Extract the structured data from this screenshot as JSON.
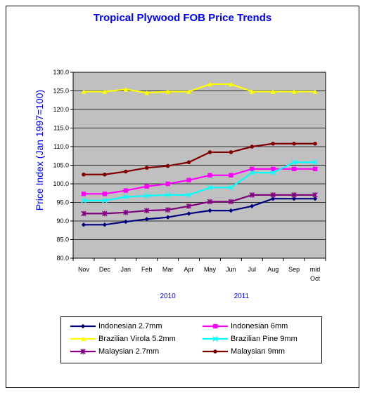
{
  "chart_data": {
    "type": "line",
    "title": "Tropical Plywood FOB Price Trends",
    "ylabel": "Price Index (Jan 1997=100)",
    "xlabel": "",
    "ylim": [
      80.0,
      130.0
    ],
    "y_ticks": [
      "80.0",
      "85.0",
      "90.0",
      "95.0",
      "100.0",
      "105.0",
      "110.0",
      "115.0",
      "120.0",
      "125.0",
      "130.0"
    ],
    "categories": [
      "Nov",
      "Dec",
      "Jan",
      "Feb",
      "Mar",
      "Apr",
      "May",
      "Jun",
      "Jul",
      "Aug",
      "Sep",
      "mid Oct"
    ],
    "category_lines": [
      [
        "Nov"
      ],
      [
        "Dec"
      ],
      [
        "Jan"
      ],
      [
        "Feb"
      ],
      [
        "Mar"
      ],
      [
        "Apr"
      ],
      [
        "May"
      ],
      [
        "Jun"
      ],
      [
        "Jul"
      ],
      [
        "Aug"
      ],
      [
        "Sep"
      ],
      [
        "mid",
        "Oct"
      ]
    ],
    "year_labels": [
      {
        "text": "2010",
        "at": 4
      },
      {
        "text": "2011",
        "at": 7.5
      }
    ],
    "grid": "horizontal",
    "legend_position": "bottom",
    "series": [
      {
        "name": "Indonesian 2.7mm",
        "color": "#000080",
        "marker": "diamond",
        "values": [
          89.0,
          89.0,
          89.8,
          90.5,
          91.0,
          92.0,
          92.8,
          92.8,
          94.0,
          96.0,
          96.0,
          96.0
        ]
      },
      {
        "name": "Indonesian 6mm",
        "color": "#ff00ff",
        "marker": "square",
        "values": [
          97.3,
          97.3,
          98.2,
          99.3,
          100.0,
          101.0,
          102.3,
          102.3,
          104.0,
          104.0,
          104.0,
          104.0
        ]
      },
      {
        "name": "Brazilian Virola 5.2mm",
        "color": "#ffff00",
        "marker": "triangle",
        "values": [
          124.8,
          124.8,
          125.4,
          124.5,
          124.8,
          124.8,
          126.8,
          126.8,
          124.8,
          124.8,
          124.8,
          124.8
        ]
      },
      {
        "name": "Brazilian Pine 9mm",
        "color": "#00ffff",
        "marker": "x",
        "values": [
          95.5,
          95.5,
          96.5,
          96.8,
          97.0,
          97.0,
          99.0,
          99.0,
          103.0,
          103.0,
          105.8,
          105.8
        ]
      },
      {
        "name": "Malaysian 2.7mm",
        "color": "#800080",
        "marker": "star",
        "values": [
          92.0,
          92.0,
          92.3,
          92.8,
          93.0,
          94.0,
          95.2,
          95.2,
          97.0,
          97.0,
          97.0,
          97.0
        ]
      },
      {
        "name": "Malaysian 9mm",
        "color": "#800000",
        "marker": "circle",
        "values": [
          102.5,
          102.5,
          103.3,
          104.3,
          104.8,
          105.8,
          108.5,
          108.5,
          110.0,
          110.8,
          110.8,
          110.8
        ]
      }
    ]
  }
}
